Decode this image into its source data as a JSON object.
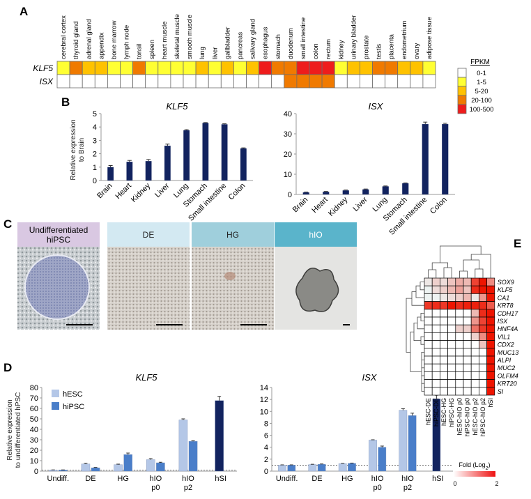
{
  "panels": {
    "a": "A",
    "b": "B",
    "c": "C",
    "d": "D",
    "e": "E"
  },
  "heatmapA": {
    "tissues": [
      "cerebral cortex",
      "thyroid gland",
      "adrenal gland",
      "appendix",
      "bone marrow",
      "lymph node",
      "tonsil",
      "spleen",
      "heart muscle",
      "skeletal muscle",
      "smooth muscle",
      "lung",
      "liver",
      "gallbladder",
      "pancreas",
      "salivary gland",
      "esophagus",
      "stomach",
      "duodenum",
      "small intestine",
      "colon",
      "rectum",
      "kidney",
      "urinary bladder",
      "prostate",
      "testis",
      "placenta",
      "endometrium",
      "ovary",
      "adipose tissue"
    ],
    "genes": [
      "KLF5",
      "ISX"
    ],
    "levels": [
      [
        1,
        3,
        2,
        2,
        1,
        1,
        3,
        1,
        1,
        1,
        1,
        2,
        1,
        2,
        1,
        2,
        4,
        3,
        3,
        4,
        4,
        4,
        1,
        2,
        2,
        3,
        3,
        2,
        2,
        1
      ],
      [
        0,
        0,
        0,
        0,
        0,
        0,
        0,
        0,
        0,
        0,
        0,
        0,
        0,
        0,
        0,
        0,
        0,
        0,
        3,
        3,
        3,
        3,
        0,
        0,
        0,
        0,
        0,
        0,
        0,
        0
      ]
    ],
    "legend_title": "FPKM",
    "legend": [
      {
        "label": "0-1",
        "color": "#ffffff"
      },
      {
        "label": "1-5",
        "color": "#ffff33"
      },
      {
        "label": "5-20",
        "color": "#ffc200"
      },
      {
        "label": "20-100",
        "color": "#f07a00"
      },
      {
        "label": "100-500",
        "color": "#ee1c1c"
      }
    ]
  },
  "chart_data": [
    {
      "type": "bar",
      "title": "KLF5",
      "ylabel": "Relative expression to Brain",
      "categories": [
        "Brain",
        "Heart",
        "Kidney",
        "Liver",
        "Lung",
        "Stomach",
        "Small intestine",
        "Colon"
      ],
      "values": [
        1.0,
        1.4,
        1.45,
        2.6,
        3.75,
        4.3,
        4.2,
        2.4
      ],
      "errors": [
        0.12,
        0.1,
        0.12,
        0.12,
        0.05,
        0.03,
        0.04,
        0.04
      ],
      "yticks": [
        "0",
        "1",
        "2",
        "3",
        "4",
        "5"
      ],
      "ylim": [
        0,
        5
      ],
      "color": "#12235f"
    },
    {
      "type": "bar",
      "title": "ISX",
      "ylabel": "",
      "categories": [
        "Brain",
        "Heart",
        "Kidney",
        "Liver",
        "Lung",
        "Stomach",
        "Small intestine",
        "Colon"
      ],
      "values": [
        1.0,
        1.3,
        2.0,
        2.5,
        4.0,
        5.5,
        34.8,
        34.8
      ],
      "errors": [
        0.2,
        0.2,
        0.2,
        0.2,
        0.2,
        0.2,
        1.0,
        0.4
      ],
      "yticks": [
        "0",
        "10",
        "20",
        "30",
        "40"
      ],
      "ylim": [
        0,
        40
      ],
      "color": "#12235f"
    },
    {
      "type": "bar",
      "title": "KLF5",
      "ylabel": "Relative expression to undifferentiated hPSC",
      "categories": [
        "Undiff.",
        "DE",
        "HG",
        "hIO p0",
        "hIO p2",
        "hSI"
      ],
      "legend": [
        {
          "name": "hESC",
          "color": "#b4c7e7"
        },
        {
          "name": "hiPSC",
          "color": "#4a7ec9"
        }
      ],
      "series": [
        {
          "name": "hESC",
          "values": [
            1.0,
            6.8,
            6.2,
            11.0,
            49.0,
            null
          ]
        },
        {
          "name": "hiPSC",
          "values": [
            1.0,
            3.2,
            15.8,
            8.0,
            28.5,
            null
          ]
        },
        {
          "name": "hSI",
          "values": [
            null,
            null,
            null,
            null,
            null,
            67.5
          ]
        }
      ],
      "errors": [
        [
          0.2,
          0.7,
          0.5,
          1.0,
          1.0,
          null
        ],
        [
          0.2,
          0.4,
          1.5,
          0.5,
          0.5,
          null
        ],
        [
          null,
          null,
          null,
          null,
          null,
          4.0
        ]
      ],
      "yticks": [
        "0",
        "10",
        "20",
        "30",
        "40",
        "50",
        "60",
        "70",
        "80"
      ],
      "ylim": [
        0,
        80
      ],
      "reference_line": 1
    },
    {
      "type": "bar",
      "title": "ISX",
      "ylabel": "",
      "categories": [
        "Undiff.",
        "DE",
        "HG",
        "hIO p0",
        "hIO p2",
        "hSI"
      ],
      "series": [
        {
          "name": "hESC",
          "values": [
            1.0,
            1.1,
            1.25,
            5.2,
            10.2,
            null
          ]
        },
        {
          "name": "hiPSC",
          "values": [
            1.0,
            1.15,
            1.3,
            4.0,
            9.3,
            null
          ]
        },
        {
          "name": "hSI",
          "values": [
            null,
            null,
            null,
            null,
            null,
            12.1
          ]
        }
      ],
      "errors": [
        [
          0.05,
          0.05,
          0.05,
          0.05,
          0.25,
          null
        ],
        [
          0.05,
          0.05,
          0.05,
          0.2,
          0.4,
          null
        ],
        [
          null,
          null,
          null,
          null,
          null,
          0.6
        ]
      ],
      "yticks": [
        "0",
        "2",
        "4",
        "6",
        "8",
        "10",
        "12",
        "14"
      ],
      "ylim": [
        0,
        14
      ],
      "reference_line": 1
    }
  ],
  "panelC": {
    "labels": [
      "Undifferentiated hiPSC",
      "DE",
      "HG",
      "hIO"
    ],
    "label_line1": "Undifferentiated",
    "label_line2": "hiPSC",
    "header_colors": [
      "#d9c8e2",
      "#d3e9f2",
      "#9fcfdc",
      "#5ab4cb"
    ]
  },
  "heatmapE": {
    "genes": [
      "SOX9",
      "KLF5",
      "CA1",
      "KRT8",
      "CDH17",
      "ISX",
      "HNF4A",
      "VIL1",
      "CDX2",
      "MUC13",
      "ALPI",
      "MUC2",
      "OLFM4",
      "KRT20",
      "SI"
    ],
    "samples": [
      "hESC-DE",
      "hiPSC-DE",
      "hESC-HG",
      "hiPSC-HG",
      "hESC-hIO p0",
      "hiPSC-hIO p0",
      "hESC-hIO p2",
      "hiPSC-hIO p2",
      "hSI"
    ],
    "values": [
      [
        0.2,
        0.4,
        0.3,
        0.5,
        0.7,
        0.6,
        1.6,
        2.0,
        1.0
      ],
      [
        0.1,
        0.3,
        0.4,
        0.6,
        0.8,
        0.5,
        1.8,
        2.0,
        2.0
      ],
      [
        0.1,
        0.1,
        0.2,
        0.3,
        0.4,
        0.6,
        0.2,
        0.9,
        2.0
      ],
      [
        1.7,
        1.8,
        1.7,
        2.0,
        1.8,
        1.9,
        1.9,
        1.8,
        1.4
      ],
      [
        0,
        0,
        0,
        0,
        0,
        0,
        0.6,
        1.8,
        2.0
      ],
      [
        0,
        0,
        0,
        0,
        0,
        0,
        0.9,
        1.6,
        2.0
      ],
      [
        0,
        0,
        0,
        0,
        0.4,
        0.4,
        1.2,
        1.7,
        2.0
      ],
      [
        0,
        0,
        0,
        0,
        0,
        0,
        0.4,
        1.0,
        2.0
      ],
      [
        0,
        0,
        0,
        0,
        0,
        0,
        0,
        0.5,
        2.0
      ],
      [
        0,
        0,
        0,
        0,
        0,
        0,
        0,
        0,
        2.0
      ],
      [
        0,
        0,
        0,
        0,
        0,
        0,
        0,
        0,
        2.0
      ],
      [
        0,
        0,
        0,
        0,
        0,
        0,
        0,
        0,
        2.0
      ],
      [
        0,
        0,
        0,
        0,
        0,
        0,
        0,
        0,
        2.0
      ],
      [
        0,
        0,
        0,
        0,
        0,
        0,
        0,
        0,
        2.0
      ],
      [
        0,
        0,
        0,
        0,
        0,
        0,
        0,
        0,
        2.0
      ]
    ],
    "legend_title": "Fold (Log",
    "legend_sub": "2",
    "legend_close": ")",
    "legend_min": "0",
    "legend_max": "2"
  }
}
